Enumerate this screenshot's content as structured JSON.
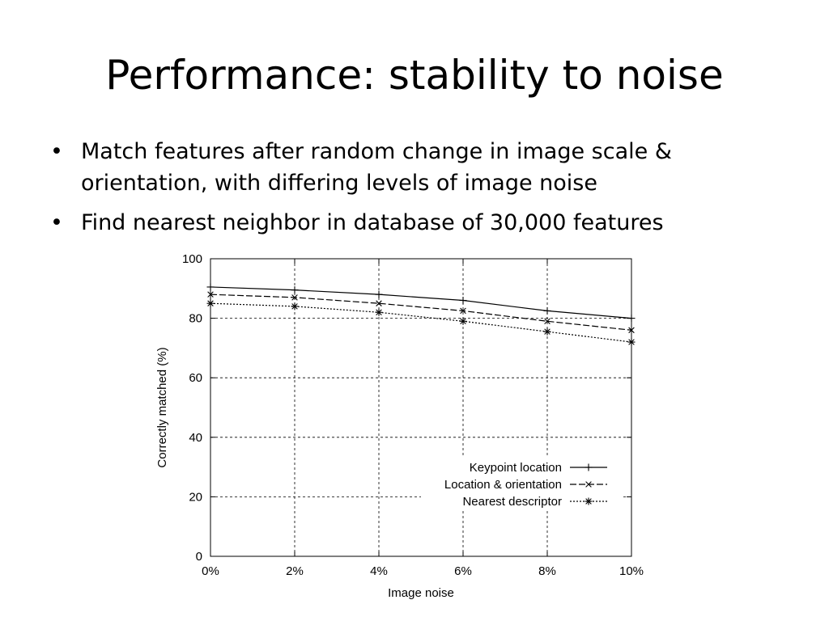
{
  "slide": {
    "title": "Performance: stability to noise",
    "bullets": [
      "Match features after random change in image scale & orientation, with differing levels of image noise",
      "Find nearest neighbor in database of 30,000 features"
    ],
    "bullet_glyph": "•"
  },
  "chart_data": {
    "type": "line",
    "title": "",
    "xlabel": "Image noise",
    "ylabel": "Correctly matched (%)",
    "x": [
      0,
      2,
      4,
      6,
      8,
      10
    ],
    "x_tick_labels": [
      "0%",
      "2%",
      "4%",
      "6%",
      "8%",
      "10%"
    ],
    "y_ticks": [
      0,
      20,
      40,
      60,
      80,
      100
    ],
    "y_tick_labels": [
      "0",
      "20",
      "40",
      "60",
      "80",
      "100"
    ],
    "xlim": [
      0,
      10
    ],
    "ylim": [
      0,
      100
    ],
    "grid": true,
    "legend_position": "lower-right",
    "series": [
      {
        "name": "Keypoint location",
        "marker": "+",
        "dash": "solid",
        "values": [
          90.5,
          89.5,
          88,
          86,
          82.5,
          80
        ]
      },
      {
        "name": "Location & orientation",
        "marker": "x",
        "dash": "dashed",
        "values": [
          88,
          87,
          85,
          82.5,
          79,
          76
        ]
      },
      {
        "name": "Nearest descriptor",
        "marker": "*",
        "dash": "dotted",
        "values": [
          85,
          84,
          82,
          79,
          75.5,
          72
        ]
      }
    ],
    "colors": {
      "line": "#000000",
      "grid": "#000000",
      "background": "#ffffff"
    }
  }
}
